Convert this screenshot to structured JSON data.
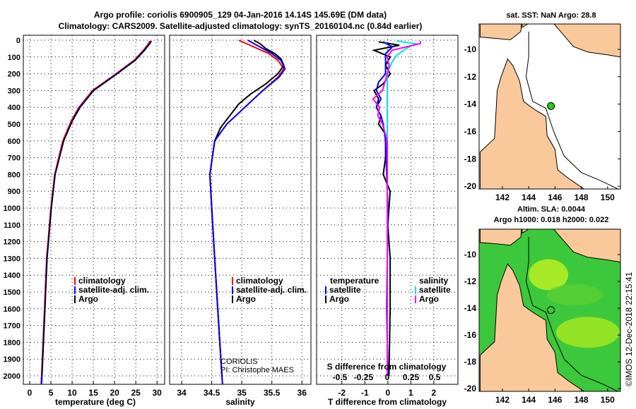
{
  "title_line1": "Argo profile: coriolis 6900905_129 04-Jan-2016 14.14S 145.69E (DM data)",
  "title_line2": "Climatology: CARS2009. Satellite-adjusted climatology: synTS_20160104.nc (0.84d earlier)",
  "colors": {
    "climatology": "#ff0000",
    "satellite": "#0000ff",
    "argo": "#000000",
    "sal_satellite": "#00e5e5",
    "sal_argo": "#ff00ff",
    "land": "#f9c99b"
  },
  "chart_data": [
    {
      "type": "line",
      "name": "temperature",
      "xlabel": "temperature (deg C)",
      "xlim": [
        -1.5,
        31.8
      ],
      "ylim": [
        2050,
        -30
      ],
      "xticks": [
        0,
        5,
        10,
        15,
        20,
        25,
        30
      ],
      "yticks": [
        0,
        100,
        200,
        300,
        400,
        500,
        600,
        700,
        800,
        900,
        1000,
        1100,
        1200,
        1300,
        1400,
        1500,
        1600,
        1700,
        1800,
        1900,
        2000
      ],
      "legend": [
        "climatology",
        "satellite-adj. clim.",
        "Argo"
      ],
      "series": [
        {
          "name": "climatology",
          "depth": [
            5,
            20,
            60,
            120,
            210,
            300,
            400,
            480,
            600,
            800,
            1000,
            1300,
            1600,
            2000,
            2050
          ],
          "values": [
            28.3,
            28.0,
            26.8,
            24.6,
            19.8,
            14.8,
            11.6,
            9.8,
            7.8,
            5.9,
            5.0,
            4.0,
            3.5,
            2.8,
            2.7
          ]
        },
        {
          "name": "satellite-adj. clim.",
          "depth": [
            5,
            20,
            60,
            120,
            210,
            300,
            400,
            480,
            600,
            800,
            1000,
            1300,
            1600,
            2000,
            2050
          ],
          "values": [
            28.6,
            28.3,
            27.0,
            24.8,
            20.0,
            15.0,
            11.8,
            10.0,
            8.0,
            6.0,
            5.1,
            4.1,
            3.6,
            2.9,
            2.8
          ]
        },
        {
          "name": "Argo",
          "depth": [
            5,
            20,
            60,
            120,
            210,
            300,
            400,
            480,
            600,
            800,
            1000,
            1300,
            1600,
            2000
          ],
          "values": [
            28.7,
            28.3,
            27.1,
            24.9,
            20.1,
            15.1,
            11.9,
            10.1,
            8.0,
            6.0,
            5.1,
            4.1,
            3.6,
            2.9
          ]
        }
      ]
    },
    {
      "type": "line",
      "name": "salinity",
      "xlabel": "salinity",
      "xlim": [
        33.8,
        36.15
      ],
      "ylim": [
        2050,
        -30
      ],
      "xticks": [
        34,
        34.5,
        35,
        35.5,
        36
      ],
      "legend": [
        "climatology",
        "satellite-adj. clim.",
        "Argo"
      ],
      "annotation": [
        "CORIOLIS",
        "PI: Christophe MAES"
      ],
      "series": [
        {
          "name": "climatology",
          "depth": [
            0,
            40,
            80,
            120,
            170,
            220,
            300,
            400,
            500,
            600,
            800,
            1000,
            1300,
            1600,
            2000,
            2050
          ],
          "values": [
            34.95,
            35.2,
            35.45,
            35.6,
            35.7,
            35.6,
            35.35,
            35.05,
            34.75,
            34.55,
            34.47,
            34.5,
            34.55,
            34.6,
            34.67,
            34.68
          ]
        },
        {
          "name": "satellite-adj. clim.",
          "depth": [
            0,
            40,
            80,
            120,
            170,
            220,
            300,
            400,
            500,
            600,
            800,
            1000,
            1300,
            1600,
            2000,
            2050
          ],
          "values": [
            35.1,
            35.3,
            35.5,
            35.65,
            35.72,
            35.62,
            35.35,
            35.05,
            34.75,
            34.55,
            34.47,
            34.5,
            34.55,
            34.6,
            34.67,
            34.68
          ]
        },
        {
          "name": "Argo",
          "depth": [
            0,
            20,
            50,
            80,
            110,
            150,
            200,
            260,
            320,
            380,
            450,
            520,
            600,
            800,
            1000,
            1300,
            1600,
            2000
          ],
          "values": [
            35.2,
            35.3,
            35.4,
            35.55,
            35.65,
            35.7,
            35.6,
            35.4,
            35.15,
            34.95,
            34.8,
            34.65,
            34.55,
            34.47,
            34.5,
            34.55,
            34.6,
            34.67
          ]
        }
      ]
    },
    {
      "type": "line",
      "name": "differences",
      "xlabel": "T difference from climatology",
      "xlim": [
        -3.1,
        3.05
      ],
      "xticks": [
        -2,
        -1,
        0,
        1,
        2
      ],
      "x2label": "S difference from climatology",
      "x2ticks": [
        -0.5,
        -0.25,
        0,
        0.25,
        0.5
      ],
      "legend_temperature": {
        "title": "temperature",
        "items": [
          "satellite",
          "Argo"
        ]
      },
      "legend_salinity": {
        "title": "salinity",
        "items": [
          "satellite",
          "Argo"
        ]
      },
      "series": [
        {
          "name": "T satellite",
          "depth": [
            10,
            40,
            80,
            120,
            200,
            250,
            300,
            350,
            400,
            450,
            500,
            600,
            800,
            1000,
            1600,
            2000
          ],
          "values": [
            -0.2,
            0.2,
            -0.1,
            -0.1,
            -0.1,
            -0.4,
            -0.5,
            -0.3,
            -0.5,
            -0.3,
            -0.2,
            -0.1,
            -0.05,
            0,
            -0.05,
            0
          ]
        },
        {
          "name": "T Argo",
          "depth": [
            10,
            30,
            60,
            100,
            150,
            200,
            260,
            300,
            350,
            400,
            450,
            500,
            560,
            700,
            800,
            900,
            1100,
            1300,
            1600,
            2000
          ],
          "values": [
            -0.4,
            0.5,
            -0.6,
            0.1,
            -0.1,
            0.1,
            -0.2,
            -0.6,
            -0.4,
            -0.5,
            -0.3,
            -0.4,
            -0.1,
            -0.1,
            -0.2,
            0.1,
            0,
            0.1,
            0.1,
            0.05
          ]
        },
        {
          "name": "S satellite",
          "depth": [
            5,
            20,
            50,
            90,
            130,
            200,
            300,
            400,
            500,
            600,
            800,
            1200,
            2000
          ],
          "values": [
            0.1,
            0.3,
            0.2,
            0.1,
            0.05,
            0,
            0,
            0,
            0,
            0,
            0,
            0,
            0
          ]
        },
        {
          "name": "S Argo",
          "depth": [
            5,
            20,
            40,
            60,
            100,
            150,
            200,
            300,
            350,
            400,
            450,
            500,
            600,
            800,
            1200,
            2000
          ],
          "values": [
            0.35,
            0.35,
            0.2,
            0.05,
            0,
            0.02,
            0,
            -0.05,
            -0.15,
            -0.08,
            -0.1,
            -0.05,
            0,
            0,
            0,
            0
          ]
        }
      ]
    }
  ],
  "map_sst": {
    "title": "sat. SST: NaN Argo: 28.8",
    "lon_ticks": [
      142,
      144,
      146,
      148,
      150
    ],
    "lat_ticks": [
      -10,
      -12,
      -14,
      -16,
      -18,
      -20
    ],
    "argo_lon": 145.69,
    "argo_lat": -14.14
  },
  "map_sla": {
    "title1": "Altim. SLA: 0.0044",
    "title2": "Argo h1000: 0.018 h2000: 0.022",
    "lon_ticks": [
      142,
      144,
      146,
      148,
      150
    ],
    "lat_ticks": [
      -10,
      -12,
      -14,
      -16,
      -18,
      -20
    ]
  },
  "watermark": "©IMOS 12-Dec-2018 22:15:41"
}
